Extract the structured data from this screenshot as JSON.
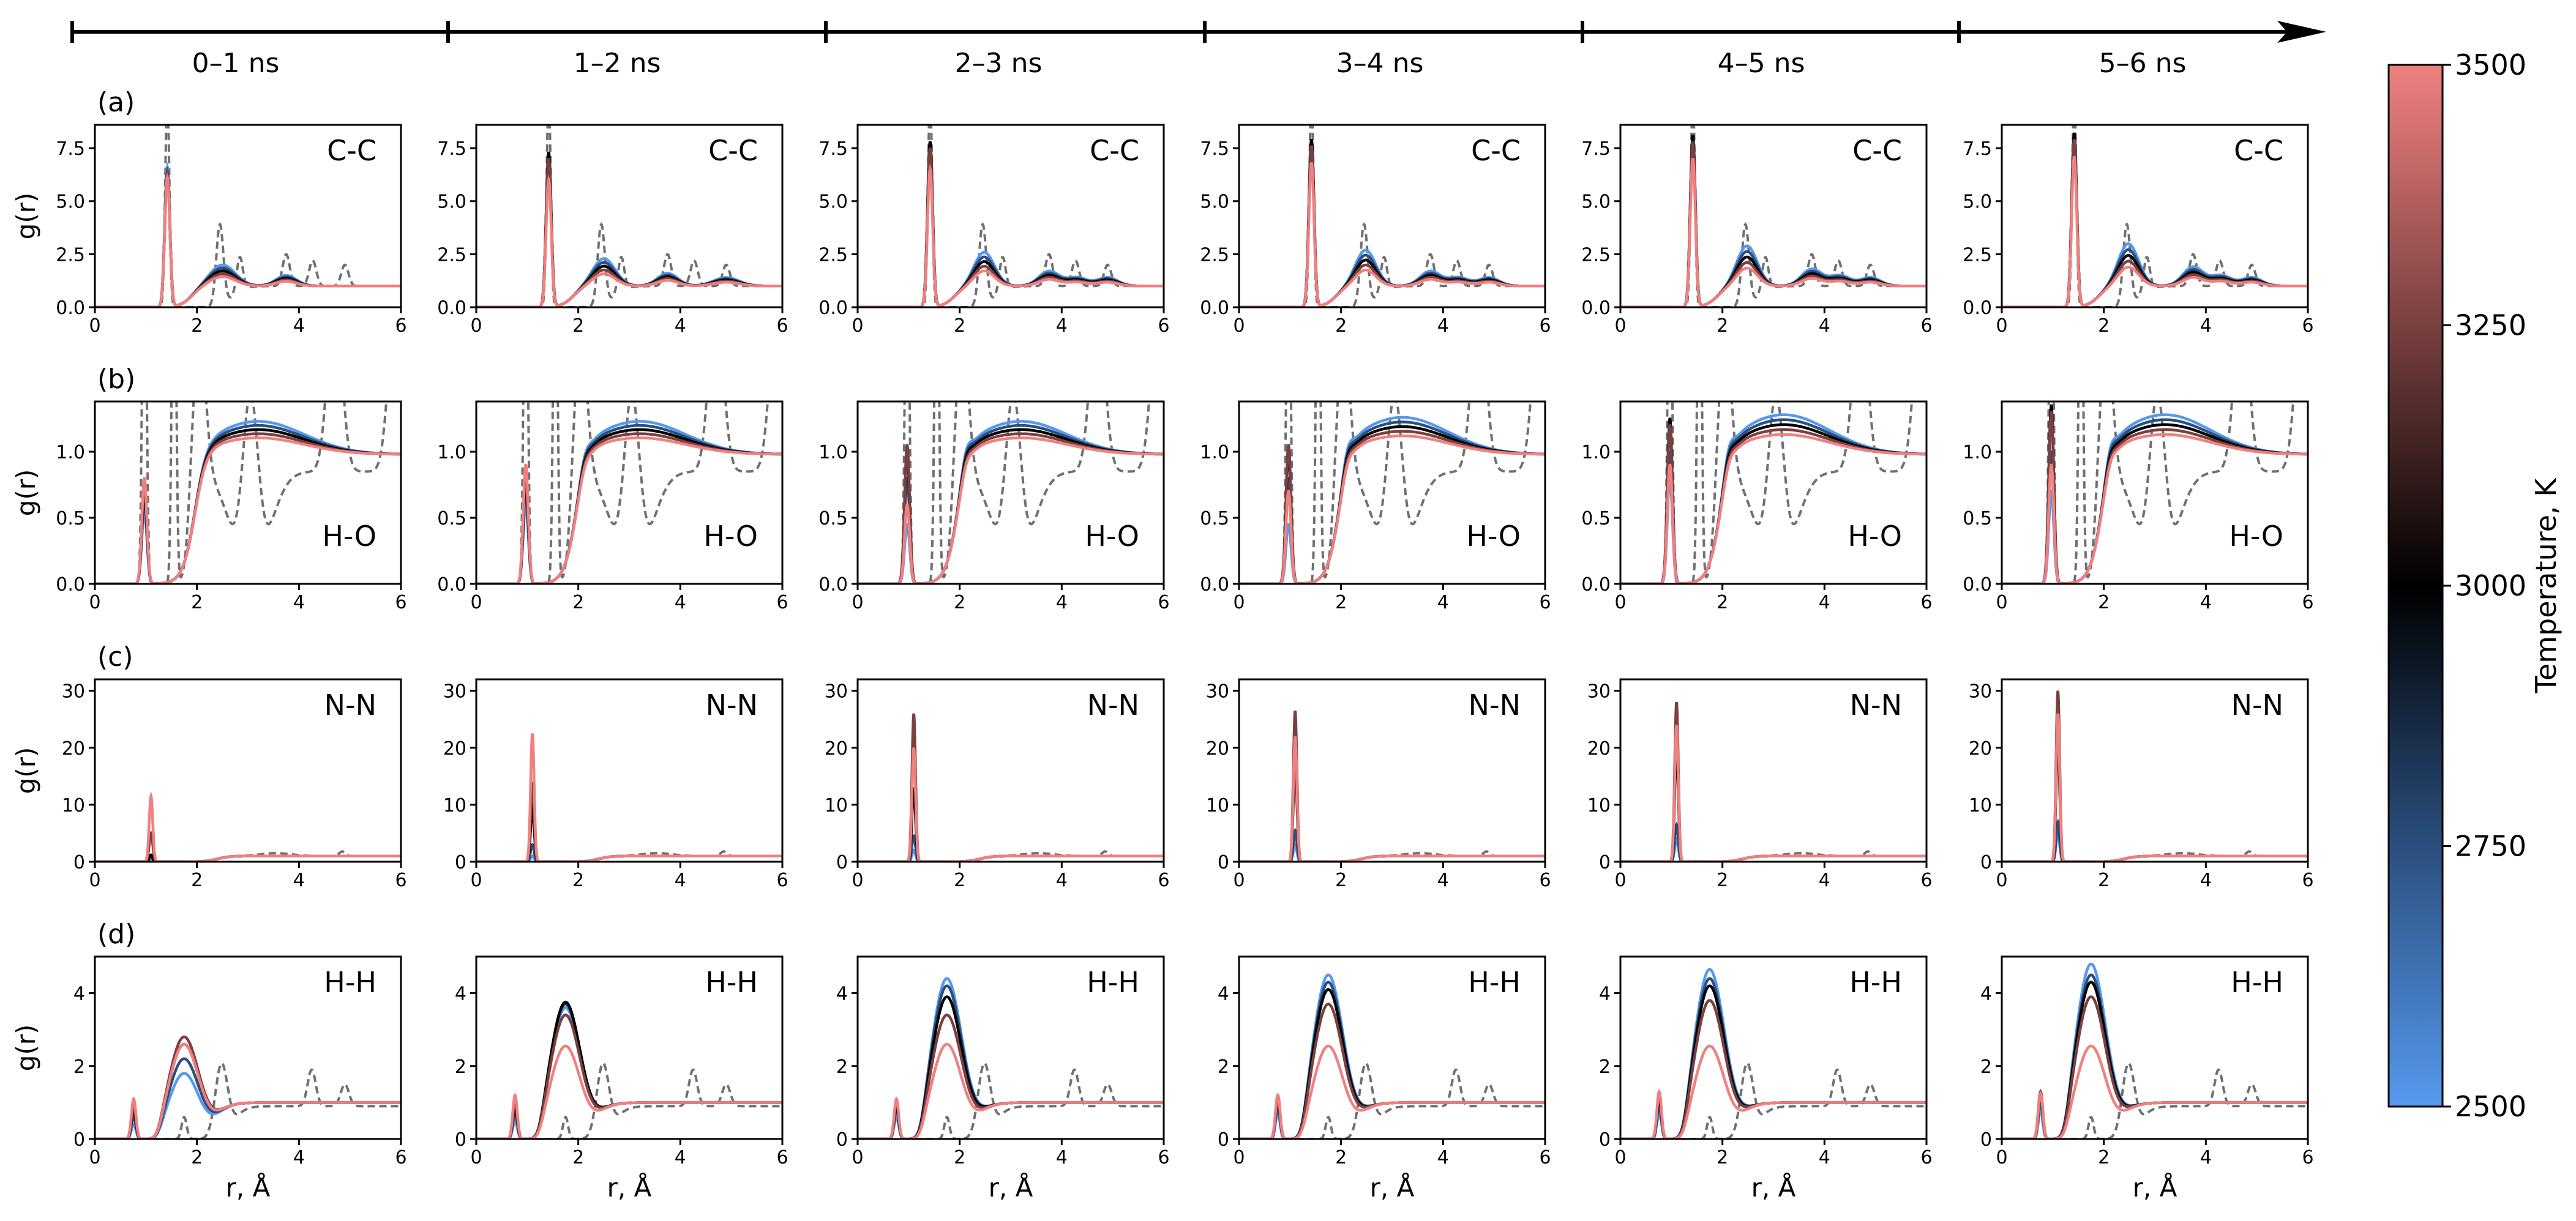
{
  "figure": {
    "time_windows": [
      "0–1 ns",
      "1–2 ns",
      "2–3 ns",
      "3–4 ns",
      "4–5 ns",
      "5–6 ns"
    ],
    "xlabel": "r, Å",
    "ylabel": "g(r)",
    "colorbar": {
      "label": "Temperature, K",
      "ticks": [
        "2500",
        "2750",
        "3000",
        "3250",
        "3500"
      ],
      "colors": {
        "low": "#5599ee",
        "mid": "#000000",
        "high": "#f08080"
      }
    },
    "reference_line_color": "#707070"
  },
  "chart_data": [
    {
      "type": "line",
      "row_label": "(a)",
      "pair": "C-C",
      "xlim": [
        0,
        6
      ],
      "ylim": [
        0,
        8.6
      ],
      "xticks": [
        "0",
        "2",
        "4",
        "6"
      ],
      "yticks": [
        "0.0",
        "2.5",
        "5.0",
        "7.5"
      ],
      "ytick_values": [
        0,
        2.5,
        5,
        7.5
      ],
      "series_temperatures": [
        2500,
        2750,
        3000,
        3250,
        3500
      ],
      "peak_r": 1.42,
      "peak_width": 0.05,
      "first_peak_by_window": [
        [
          6.6,
          6.4,
          6.2,
          6.3,
          6.1
        ],
        [
          7.0,
          7.2,
          7.3,
          7.0,
          6.0
        ],
        [
          7.6,
          7.7,
          7.8,
          7.5,
          6.5
        ],
        [
          7.8,
          7.9,
          7.9,
          7.6,
          6.8
        ],
        [
          7.9,
          8.0,
          8.1,
          7.8,
          7.0
        ],
        [
          8.0,
          8.1,
          8.2,
          7.9,
          7.1
        ]
      ],
      "features_by_window": [
        [
          [
            2.5,
            0.25,
            1.0
          ],
          [
            3.75,
            0.2,
            0.5
          ]
        ],
        [
          [
            2.5,
            0.22,
            1.3
          ],
          [
            3.75,
            0.2,
            0.6
          ],
          [
            4.9,
            0.25,
            0.4
          ]
        ],
        [
          [
            2.48,
            0.2,
            1.6
          ],
          [
            3.75,
            0.2,
            0.7
          ],
          [
            4.3,
            0.2,
            0.4
          ],
          [
            4.9,
            0.2,
            0.4
          ]
        ],
        [
          [
            2.48,
            0.2,
            1.7
          ],
          [
            3.75,
            0.2,
            0.7
          ],
          [
            4.3,
            0.2,
            0.4
          ],
          [
            4.9,
            0.2,
            0.4
          ]
        ],
        [
          [
            2.48,
            0.2,
            1.9
          ],
          [
            3.75,
            0.2,
            0.8
          ],
          [
            4.3,
            0.2,
            0.5
          ],
          [
            4.9,
            0.2,
            0.4
          ]
        ],
        [
          [
            2.48,
            0.2,
            2.0
          ],
          [
            3.75,
            0.2,
            0.9
          ],
          [
            4.3,
            0.2,
            0.5
          ],
          [
            4.9,
            0.2,
            0.4
          ]
        ]
      ],
      "baseline": 1.0,
      "rise_r": 1.9,
      "reference": [
        [
          1.42,
          0.04,
          10.0
        ],
        [
          2.45,
          0.07,
          3.8
        ],
        [
          2.84,
          0.06,
          1.6
        ],
        [
          3.75,
          0.07,
          1.5
        ],
        [
          4.27,
          0.07,
          1.2
        ],
        [
          4.9,
          0.07,
          1.0
        ]
      ],
      "reference_baseline": 1.0
    },
    {
      "type": "line",
      "row_label": "(b)",
      "pair": "H-O",
      "xlim": [
        0,
        6
      ],
      "ylim": [
        0,
        1.38
      ],
      "xticks": [
        "0",
        "2",
        "4",
        "6"
      ],
      "yticks": [
        "0.0",
        "0.5",
        "1.0"
      ],
      "ytick_values": [
        0,
        0.5,
        1.0
      ],
      "series_temperatures": [
        2500,
        2750,
        3000,
        3250,
        3500
      ],
      "peak_r": 0.97,
      "peak_width": 0.05,
      "first_peak_by_window": [
        [
          0.55,
          0.65,
          0.7,
          0.75,
          0.8
        ],
        [
          0.6,
          0.7,
          0.75,
          0.8,
          0.9
        ],
        [
          0.45,
          0.8,
          1.0,
          1.05,
          0.6
        ],
        [
          0.45,
          0.8,
          1.0,
          1.05,
          0.7
        ],
        [
          0.8,
          1.0,
          1.25,
          1.2,
          0.9
        ],
        [
          0.7,
          1.0,
          1.35,
          1.3,
          0.9
        ]
      ],
      "features_by_window": [
        [
          [
            3.2,
            0.9,
            0.25
          ]
        ],
        [
          [
            3.2,
            0.9,
            0.25
          ],
          [
            2.1,
            0.1,
            0.1
          ]
        ],
        [
          [
            3.2,
            0.9,
            0.25
          ],
          [
            2.1,
            0.1,
            0.15
          ]
        ],
        [
          [
            3.2,
            0.9,
            0.28
          ],
          [
            2.1,
            0.1,
            0.15
          ]
        ],
        [
          [
            3.2,
            0.9,
            0.3
          ],
          [
            2.1,
            0.1,
            0.15
          ]
        ],
        [
          [
            3.2,
            0.9,
            0.3
          ],
          [
            2.1,
            0.1,
            0.15
          ]
        ]
      ],
      "baseline": 0.98,
      "rise_r": 1.95,
      "reference": [
        [
          0.97,
          0.04,
          3.0
        ],
        [
          1.55,
          0.04,
          3.0
        ],
        [
          2.05,
          0.12,
          1.05
        ],
        [
          3.05,
          0.15,
          1.4
        ],
        [
          4.7,
          0.14,
          1.3
        ],
        [
          5.9,
          0.14,
          1.3
        ]
      ],
      "reference_baseline": 0.9
    },
    {
      "type": "line",
      "row_label": "(c)",
      "pair": "N-N",
      "xlim": [
        0,
        6
      ],
      "ylim": [
        0,
        32
      ],
      "xticks": [
        "0",
        "2",
        "4",
        "6"
      ],
      "yticks": [
        "0",
        "10",
        "20",
        "30"
      ],
      "ytick_values": [
        0,
        10,
        20,
        30
      ],
      "series_temperatures": [
        2500,
        2750,
        3000,
        3250,
        3500
      ],
      "peak_r": 1.1,
      "peak_width": 0.035,
      "first_peak_by_window": [
        [
          0.5,
          0.8,
          1.2,
          5.0,
          11.5
        ],
        [
          1.0,
          3.0,
          9.5,
          14.0,
          22.5
        ],
        [
          2.0,
          4.5,
          13.0,
          26.0,
          20.0
        ],
        [
          3.0,
          5.5,
          18.0,
          26.5,
          22.0
        ],
        [
          4.0,
          6.5,
          20.0,
          28.0,
          24.0
        ],
        [
          5.0,
          7.0,
          22.0,
          30.0,
          26.0
        ]
      ],
      "features_by_window": [
        [],
        [],
        [],
        [],
        [],
        []
      ],
      "baseline": 1.0,
      "rise_r": 2.4,
      "reference": [
        [
          3.55,
          0.3,
          0.5
        ],
        [
          4.85,
          0.06,
          0.8
        ]
      ],
      "reference_baseline": 1.0
    },
    {
      "type": "line",
      "row_label": "(d)",
      "pair": "H-H",
      "xlim": [
        0,
        6
      ],
      "ylim": [
        0,
        5
      ],
      "xticks": [
        "0",
        "2",
        "4",
        "6"
      ],
      "yticks": [
        "0",
        "2",
        "4"
      ],
      "ytick_values": [
        0,
        2,
        4
      ],
      "series_temperatures": [
        2500,
        2750,
        3000,
        3250,
        3500
      ],
      "peak_r": 0.76,
      "peak_width": 0.045,
      "first_peak_by_window": [
        [
          0.4,
          0.6,
          0.8,
          0.9,
          1.1
        ],
        [
          0.5,
          0.7,
          0.9,
          1.0,
          1.2
        ],
        [
          0.6,
          0.8,
          0.9,
          1.0,
          1.1
        ],
        [
          0.7,
          0.9,
          1.1,
          1.2,
          1.2
        ],
        [
          0.7,
          0.9,
          1.1,
          1.2,
          1.3
        ],
        [
          0.8,
          1.0,
          1.2,
          1.3,
          1.25
        ]
      ],
      "second_peak_by_window": [
        [
          1.8,
          2.2,
          2.6,
          2.8,
          2.6
        ],
        [
          3.6,
          3.7,
          3.75,
          3.4,
          2.55
        ],
        [
          4.4,
          4.2,
          3.9,
          3.4,
          2.6
        ],
        [
          4.5,
          4.3,
          4.1,
          3.7,
          2.55
        ],
        [
          4.65,
          4.4,
          4.2,
          3.8,
          2.55
        ],
        [
          4.8,
          4.5,
          4.3,
          3.9,
          2.55
        ]
      ],
      "second_peak_r": 1.75,
      "second_peak_width": 0.3,
      "features_by_window": [
        [],
        [],
        [],
        [],
        [],
        []
      ],
      "baseline": 1.0,
      "rise_r": 1.2,
      "reference": [
        [
          0.76,
          0.04,
          0.8
        ],
        [
          1.75,
          0.05,
          0.6
        ],
        [
          2.48,
          0.12,
          1.95
        ],
        [
          4.25,
          0.08,
          1.0
        ],
        [
          4.9,
          0.08,
          0.6
        ]
      ],
      "reference_baseline": 0.9
    }
  ]
}
